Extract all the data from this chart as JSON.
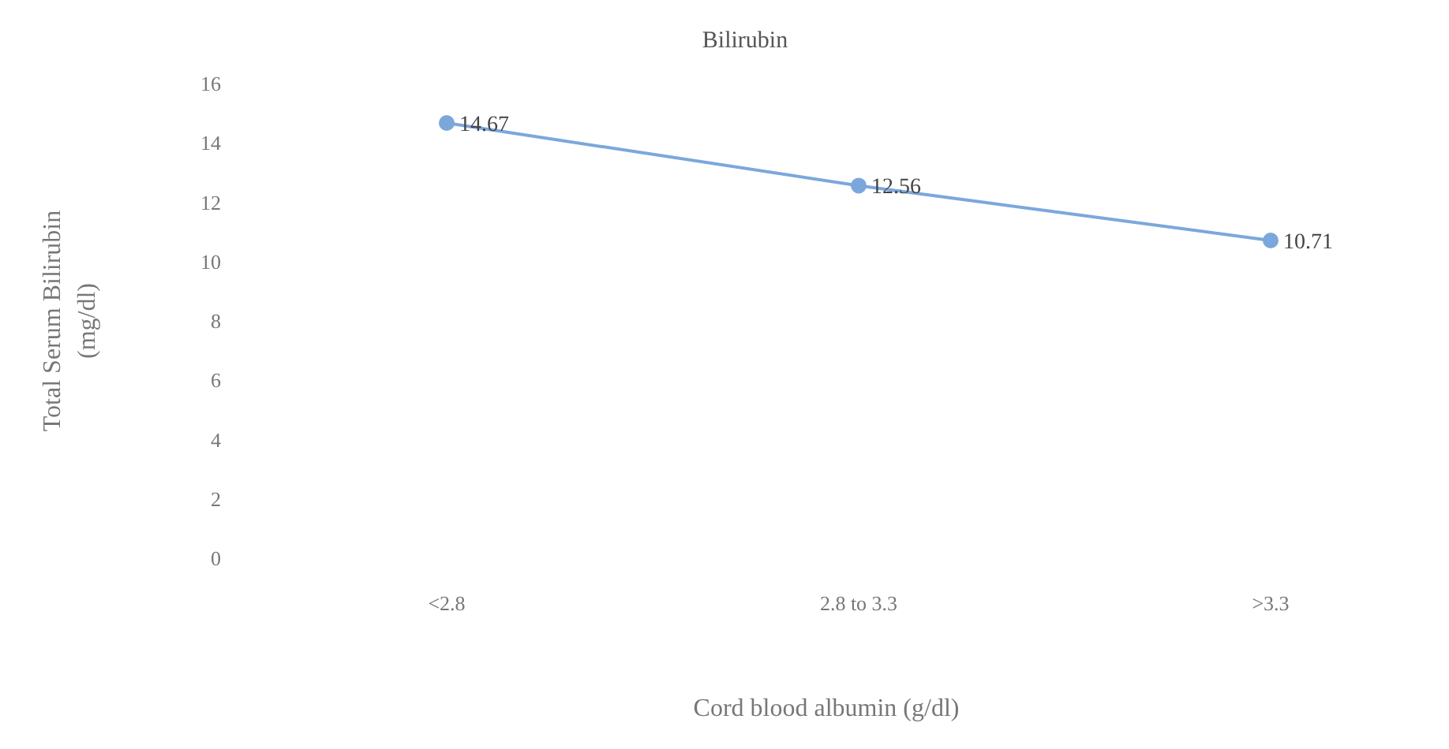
{
  "chart_data": {
    "type": "line",
    "title": "Bilirubin",
    "xlabel": "Cord blood albumin (g/dl)",
    "ylabel": "Total Serum Bilirubin (mg/dl)",
    "categories": [
      "<2.8",
      "2.8 to 3.3",
      ">3.3"
    ],
    "series": [
      {
        "color": "#7ba7dc",
        "values": [
          14.67,
          12.56,
          10.71
        ]
      }
    ],
    "ylim": [
      0,
      16
    ],
    "yticks": [
      0,
      2,
      4,
      6,
      8,
      10,
      12,
      14,
      16
    ],
    "grid": false,
    "legend": false,
    "marker": "circle",
    "data_labels": true
  }
}
